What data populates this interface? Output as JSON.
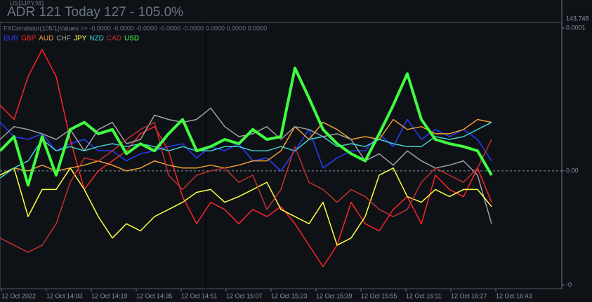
{
  "header": {
    "symbol": "USDJPY,M1",
    "adr": "ADR 121  Today 127 - 105.0%",
    "price": "143.748"
  },
  "chart_data": {
    "type": "line",
    "indicator_label": "FXCorrelator(105/1)Values >> -0.0000 -0.0000 -0.0000 -0.0000 -0.0000 0.0000 0.0000 0.0000",
    "xticks": [
      "12 Oct 2022",
      "12 Oct 14:03",
      "12 Oct 14:19",
      "12 Oct 14:35",
      "12 Oct 14:51",
      "12 Oct 15:07",
      "12 Oct 15:23",
      "12 Oct 15:39",
      "12 Oct 15:55",
      "12 Oct 16:11",
      "12 Oct 16:27",
      "12 Oct 16:43"
    ],
    "ylim": [
      -8e-05,
      0.0001
    ],
    "yticks": [
      {
        "value": 0.0001,
        "label": "0.0001"
      },
      {
        "value": 0,
        "label": "0.00"
      },
      {
        "value": -8e-05,
        "label": "-0"
      }
    ],
    "series": [
      {
        "name": "EUR",
        "color": "#2a3cff",
        "values": [
          3.4e-05,
          2.4e-05,
          2.2e-05,
          2.6e-05,
          1.4e-05,
          1.9e-05,
          2.2e-05,
          1.4e-05,
          1.4e-05,
          7e-06,
          1.2e-05,
          1.4e-05,
          1.7e-05,
          1.9e-05,
          9e-06,
          1.7e-05,
          1.4e-05,
          1.9e-05,
          7e-06,
          9e-06,
          0,
          1.4e-05,
          2.9e-05,
          2e-06,
          9e-06,
          1.4e-05,
          1.4e-05,
          2.6e-05,
          1.7e-05,
          3.6e-05,
          2.2e-05,
          2.9e-05,
          2.4e-05,
          2.9e-05,
          2.2e-05,
          7e-06
        ]
      },
      {
        "name": "GBP",
        "color": "#ff2424",
        "values": [
          4.6e-05,
          3.6e-05,
          6.6e-05,
          8.5e-05,
          6.6e-05,
          2.2e-05,
          -1.3e-05,
          0,
          7e-06,
          1.4e-05,
          2.6e-05,
          3.1e-05,
          1.4e-05,
          -1.8e-05,
          -3.7e-05,
          -2.2e-05,
          -2.7e-05,
          -3.7e-05,
          -2.7e-05,
          -3.2e-05,
          -2.5e-05,
          -3.7e-05,
          -5.2e-05,
          -6.7e-05,
          -5.2e-05,
          -2.2e-05,
          -3.7e-05,
          -4.2e-05,
          -2.7e-05,
          -1.8e-05,
          -3.7e-05,
          -3e-06,
          -1.3e-05,
          -1.8e-05,
          2e-06,
          -2.2e-05
        ]
      },
      {
        "name": "AUD",
        "color": "#f0a030",
        "values": [
          -3e-06,
          2e-06,
          0,
          4e-06,
          0,
          2e-06,
          4e-06,
          7e-06,
          4e-06,
          0,
          2e-06,
          7e-06,
          4e-06,
          2e-06,
          2e-06,
          4e-06,
          2e-06,
          4e-06,
          7e-06,
          7e-06,
          1.4e-05,
          3.1e-05,
          2.2e-05,
          3.4e-05,
          2.9e-05,
          2.2e-05,
          2.4e-05,
          2.2e-05,
          3.6e-05,
          2.9e-05,
          3.1e-05,
          2.6e-05,
          2.6e-05,
          2.9e-05,
          3.6e-05,
          3.4e-05
        ]
      },
      {
        "name": "CHF",
        "color": "#a0a0a0",
        "values": [
          2.2e-05,
          3.1e-05,
          2.9e-05,
          2.6e-05,
          2.2e-05,
          2.9e-05,
          1.4e-05,
          2.9e-05,
          3.4e-05,
          1.9e-05,
          2.2e-05,
          3.9e-05,
          3.6e-05,
          3.4e-05,
          3.6e-05,
          4.4e-05,
          3.1e-05,
          2.4e-05,
          2.6e-05,
          3.1e-05,
          2.2e-05,
          3.1e-05,
          2.9e-05,
          2.4e-05,
          2.6e-05,
          2.2e-05,
          7e-06,
          1.2e-05,
          4e-06,
          1.4e-05,
          7e-06,
          2e-06,
          4e-06,
          7e-06,
          -3e-06,
          -3.7e-05
        ]
      },
      {
        "name": "JPY",
        "color": "#ffff40",
        "values": [
          -3e-06,
          2e-06,
          -3.2e-05,
          -1.3e-05,
          -1.3e-05,
          2e-06,
          -1.3e-05,
          -3.2e-05,
          -4.7e-05,
          -3.7e-05,
          -4.2e-05,
          -3.2e-05,
          -2.7e-05,
          -2.2e-05,
          -1.5e-05,
          -1.3e-05,
          -2.2e-05,
          -1.8e-05,
          -1.3e-05,
          -8e-06,
          -2.7e-05,
          -3.2e-05,
          -3.7e-05,
          -2.2e-05,
          -5.2e-05,
          -4.7e-05,
          -3.2e-05,
          -3e-06,
          2e-06,
          -1.8e-05,
          -2.2e-05,
          -1.3e-05,
          -1.8e-05,
          -1.3e-05,
          -1.3e-05,
          -2.5e-05
        ]
      },
      {
        "name": "NZD",
        "color": "#40d0d0",
        "values": [
          -5e-06,
          2e-06,
          7e-06,
          2.2e-05,
          1.4e-05,
          1.7e-05,
          1.4e-05,
          1.7e-05,
          1.9e-05,
          1.7e-05,
          1.9e-05,
          1.7e-05,
          1.4e-05,
          1.7e-05,
          1.4e-05,
          1.4e-05,
          1.7e-05,
          1.7e-05,
          1.4e-05,
          1.4e-05,
          1.7e-05,
          1.4e-05,
          2.2e-05,
          2.4e-05,
          1.7e-05,
          1.9e-05,
          1.7e-05,
          2.2e-05,
          1.9e-05,
          1.7e-05,
          1.7e-05,
          2.4e-05,
          2.2e-05,
          2.4e-05,
          2.9e-05,
          3.4e-05
        ]
      },
      {
        "name": "CAD",
        "color": "#c03030",
        "values": [
          -4.7e-05,
          -5.2e-05,
          -5.7e-05,
          -5.2e-05,
          -3.7e-05,
          -8e-06,
          9e-06,
          7e-06,
          1.4e-05,
          2.2e-05,
          2.9e-05,
          3.4e-05,
          -3e-06,
          -1.3e-05,
          -3e-06,
          0,
          2e-06,
          -8e-06,
          -3e-06,
          -2.7e-05,
          -1.3e-05,
          1.7e-05,
          -8e-06,
          -1.3e-05,
          -2.2e-05,
          -1.3e-05,
          -1.8e-05,
          -2.7e-05,
          -3.2e-05,
          -2.7e-05,
          -8e-06,
          2e-06,
          -3e-06,
          -8e-06,
          2e-06,
          2.2e-05
        ]
      },
      {
        "name": "USD",
        "color": "#40ff40",
        "width": 4,
        "values": [
          1.4e-05,
          2.4e-05,
          -1e-05,
          2.4e-05,
          -3e-06,
          2.9e-05,
          3.4e-05,
          2.6e-05,
          2.9e-05,
          1.2e-05,
          1.9e-05,
          1.4e-05,
          2.6e-05,
          3.6e-05,
          1.4e-05,
          1.7e-05,
          2.2e-05,
          1.9e-05,
          2.9e-05,
          2.2e-05,
          2.4e-05,
          7.2e-05,
          5.1e-05,
          2.9e-05,
          1.9e-05,
          1.2e-05,
          7e-06,
          2.6e-05,
          4.6e-05,
          6.8e-05,
          3.6e-05,
          2.2e-05,
          1.9e-05,
          1.7e-05,
          1.4e-05,
          -3e-06
        ]
      }
    ]
  }
}
